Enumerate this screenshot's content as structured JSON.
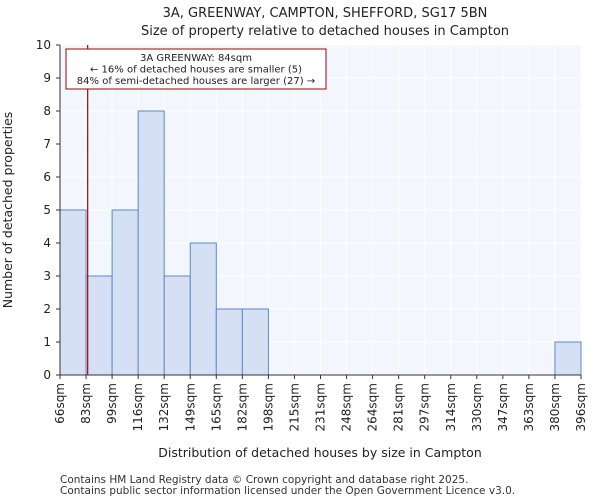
{
  "chart_data": {
    "type": "bar",
    "title": "3A, GREENWAY, CAMPTON, SHEFFORD, SG17 5BN",
    "subtitle": "Size of property relative to detached houses in Campton",
    "xlabel": "Distribution of detached houses by size in Campton",
    "ylabel": "Number of detached properties",
    "bin_edges": [
      66,
      83,
      99,
      116,
      132,
      149,
      165,
      182,
      198,
      215,
      231,
      248,
      264,
      281,
      297,
      314,
      330,
      347,
      363,
      380,
      396
    ],
    "tick_labels": [
      "66sqm",
      "83sqm",
      "99sqm",
      "116sqm",
      "132sqm",
      "149sqm",
      "165sqm",
      "182sqm",
      "198sqm",
      "215sqm",
      "231sqm",
      "248sqm",
      "264sqm",
      "281sqm",
      "297sqm",
      "314sqm",
      "330sqm",
      "347sqm",
      "363sqm",
      "380sqm",
      "396sqm"
    ],
    "values": [
      5,
      3,
      5,
      8,
      3,
      4,
      2,
      2,
      0,
      0,
      0,
      0,
      0,
      0,
      0,
      0,
      0,
      0,
      0,
      1
    ],
    "ylim": [
      0,
      10
    ],
    "yticks": [
      0,
      1,
      2,
      3,
      4,
      5,
      6,
      7,
      8,
      9,
      10
    ],
    "grid": true,
    "marker": {
      "value": 84,
      "color": "#aa0000",
      "annotation": [
        "3A GREENWAY: 84sqm",
        "← 16% of detached houses are smaller (5)",
        "84% of semi-detached houses are larger (27) →"
      ]
    },
    "colors": {
      "bar_fill": "#d6e0f5",
      "bar_edge": "#5b8ac7",
      "plot_bg": "#f3f6fd",
      "grid": "#ffffff"
    }
  },
  "footer": {
    "line1": "Contains HM Land Registry data © Crown copyright and database right 2025.",
    "line2": "Contains public sector information licensed under the Open Government Licence v3.0."
  }
}
